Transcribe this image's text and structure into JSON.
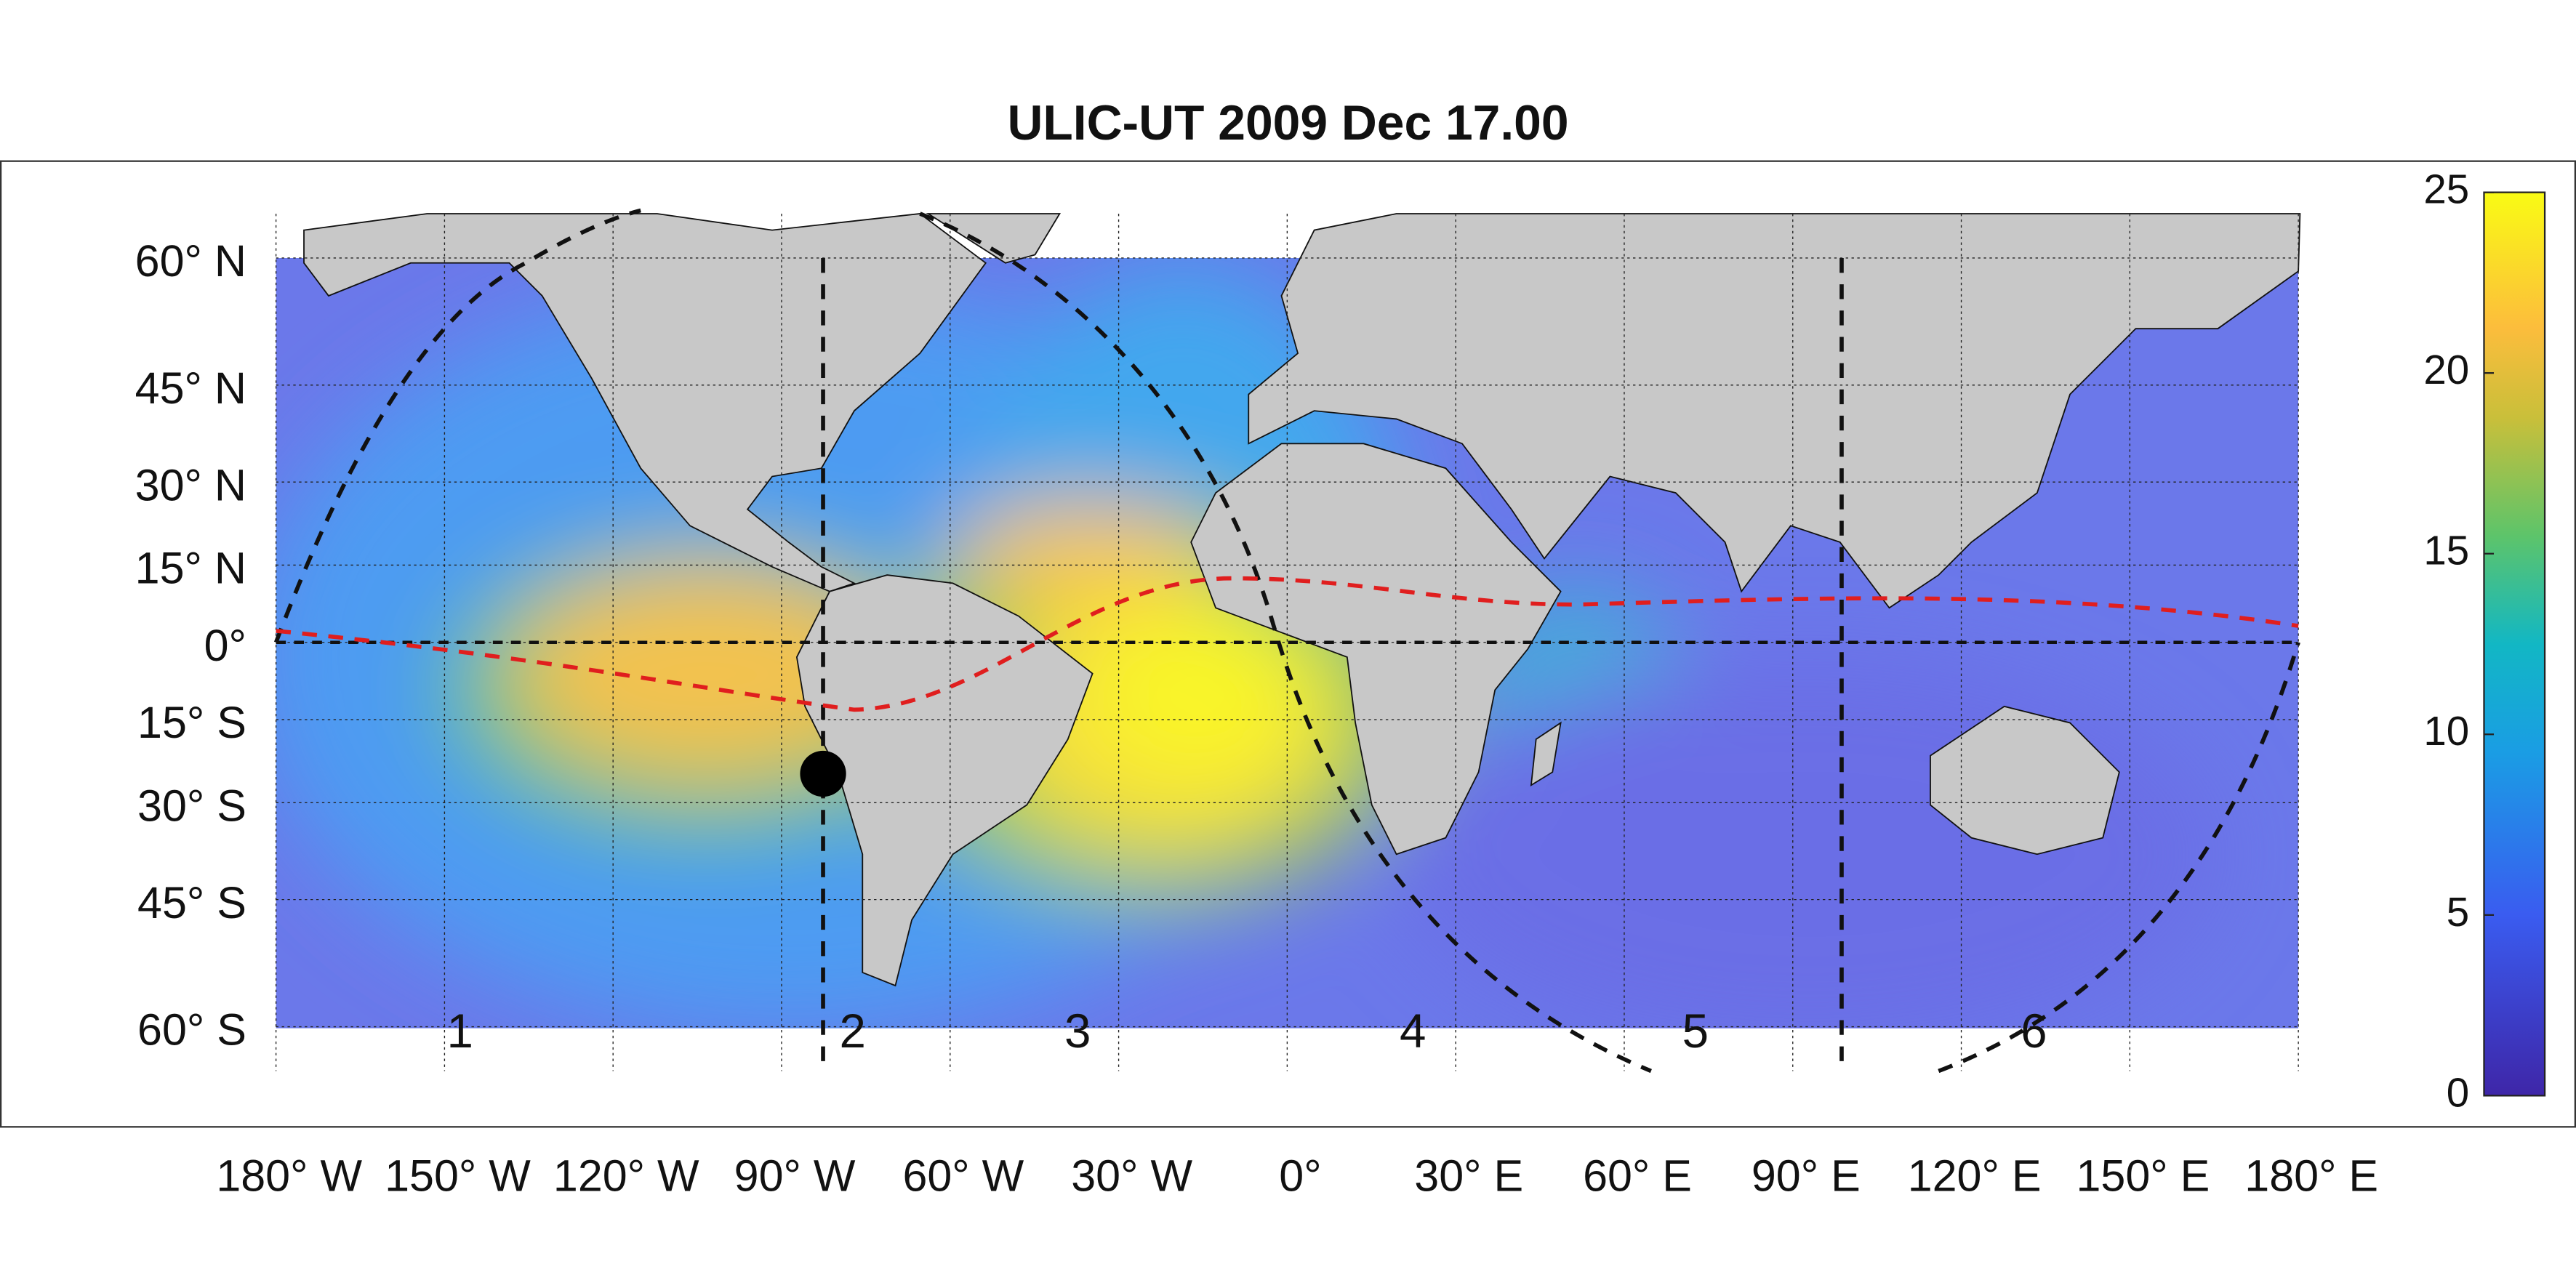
{
  "title": "ULIC-UT 2009 Dec 17.00",
  "longitude_ticks": [
    {
      "value": -180,
      "label": "180° W"
    },
    {
      "value": -150,
      "label": "150° W"
    },
    {
      "value": -120,
      "label": "120° W"
    },
    {
      "value": -90,
      "label": "90° W"
    },
    {
      "value": -60,
      "label": "60° W"
    },
    {
      "value": -30,
      "label": "30° W"
    },
    {
      "value": 0,
      "label": "0°"
    },
    {
      "value": 30,
      "label": "30° E"
    },
    {
      "value": 60,
      "label": "60° E"
    },
    {
      "value": 90,
      "label": "90° E"
    },
    {
      "value": 120,
      "label": "120° E"
    },
    {
      "value": 150,
      "label": "150° E"
    },
    {
      "value": 180,
      "label": "180° E"
    }
  ],
  "latitude_ticks": [
    {
      "value": 60,
      "label": "60° N"
    },
    {
      "value": 45,
      "label": "45° N"
    },
    {
      "value": 30,
      "label": "30° N"
    },
    {
      "value": 15,
      "label": "15° N"
    },
    {
      "value": 0,
      "label": "0°"
    },
    {
      "value": -15,
      "label": "15° S"
    },
    {
      "value": -30,
      "label": "30° S"
    },
    {
      "value": -45,
      "label": "45° S"
    },
    {
      "value": -60,
      "label": "60° S"
    }
  ],
  "colorbar": {
    "lim": [
      0,
      25
    ],
    "ticks": [
      0,
      5,
      10,
      15,
      20,
      25
    ]
  },
  "region_labels": [
    "1",
    "2",
    "3",
    "4",
    "5",
    "6"
  ]
}
